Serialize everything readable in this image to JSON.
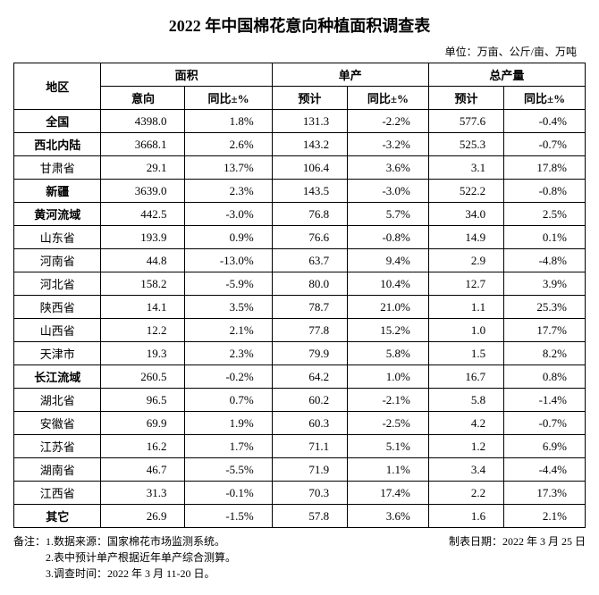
{
  "title": "2022 年中国棉花意向种植面积调查表",
  "unit_label": "单位：万亩、公斤/亩、万吨",
  "headers": {
    "region": "地区",
    "area": "面积",
    "area_intent": "意向",
    "area_yoy": "同比±%",
    "yield": "单产",
    "yield_est": "预计",
    "yield_yoy": "同比±%",
    "total": "总产量",
    "total_est": "预计",
    "total_yoy": "同比±%"
  },
  "rows": [
    {
      "region": "全国",
      "area": "4398.0",
      "area_yoy": "1.8%",
      "yield": "131.3",
      "yield_yoy": "-2.2%",
      "total": "577.6",
      "total_yoy": "-0.4%",
      "bold": true
    },
    {
      "region": "西北内陆",
      "area": "3668.1",
      "area_yoy": "2.6%",
      "yield": "143.2",
      "yield_yoy": "-3.2%",
      "total": "525.3",
      "total_yoy": "-0.7%",
      "bold": true
    },
    {
      "region": "甘肃省",
      "area": "29.1",
      "area_yoy": "13.7%",
      "yield": "106.4",
      "yield_yoy": "3.6%",
      "total": "3.1",
      "total_yoy": "17.8%",
      "bold": false
    },
    {
      "region": "新疆",
      "area": "3639.0",
      "area_yoy": "2.3%",
      "yield": "143.5",
      "yield_yoy": "-3.0%",
      "total": "522.2",
      "total_yoy": "-0.8%",
      "bold": true
    },
    {
      "region": "黄河流域",
      "area": "442.5",
      "area_yoy": "-3.0%",
      "yield": "76.8",
      "yield_yoy": "5.7%",
      "total": "34.0",
      "total_yoy": "2.5%",
      "bold": true
    },
    {
      "region": "山东省",
      "area": "193.9",
      "area_yoy": "0.9%",
      "yield": "76.6",
      "yield_yoy": "-0.8%",
      "total": "14.9",
      "total_yoy": "0.1%",
      "bold": false
    },
    {
      "region": "河南省",
      "area": "44.8",
      "area_yoy": "-13.0%",
      "yield": "63.7",
      "yield_yoy": "9.4%",
      "total": "2.9",
      "total_yoy": "-4.8%",
      "bold": false
    },
    {
      "region": "河北省",
      "area": "158.2",
      "area_yoy": "-5.9%",
      "yield": "80.0",
      "yield_yoy": "10.4%",
      "total": "12.7",
      "total_yoy": "3.9%",
      "bold": false
    },
    {
      "region": "陕西省",
      "area": "14.1",
      "area_yoy": "3.5%",
      "yield": "78.7",
      "yield_yoy": "21.0%",
      "total": "1.1",
      "total_yoy": "25.3%",
      "bold": false
    },
    {
      "region": "山西省",
      "area": "12.2",
      "area_yoy": "2.1%",
      "yield": "77.8",
      "yield_yoy": "15.2%",
      "total": "1.0",
      "total_yoy": "17.7%",
      "bold": false
    },
    {
      "region": "天津市",
      "area": "19.3",
      "area_yoy": "2.3%",
      "yield": "79.9",
      "yield_yoy": "5.8%",
      "total": "1.5",
      "total_yoy": "8.2%",
      "bold": false
    },
    {
      "region": "长江流域",
      "area": "260.5",
      "area_yoy": "-0.2%",
      "yield": "64.2",
      "yield_yoy": "1.0%",
      "total": "16.7",
      "total_yoy": "0.8%",
      "bold": true
    },
    {
      "region": "湖北省",
      "area": "96.5",
      "area_yoy": "0.7%",
      "yield": "60.2",
      "yield_yoy": "-2.1%",
      "total": "5.8",
      "total_yoy": "-1.4%",
      "bold": false
    },
    {
      "region": "安徽省",
      "area": "69.9",
      "area_yoy": "1.9%",
      "yield": "60.3",
      "yield_yoy": "-2.5%",
      "total": "4.2",
      "total_yoy": "-0.7%",
      "bold": false
    },
    {
      "region": "江苏省",
      "area": "16.2",
      "area_yoy": "1.7%",
      "yield": "71.1",
      "yield_yoy": "5.1%",
      "total": "1.2",
      "total_yoy": "6.9%",
      "bold": false
    },
    {
      "region": "湖南省",
      "area": "46.7",
      "area_yoy": "-5.5%",
      "yield": "71.9",
      "yield_yoy": "1.1%",
      "total": "3.4",
      "total_yoy": "-4.4%",
      "bold": false
    },
    {
      "region": "江西省",
      "area": "31.3",
      "area_yoy": "-0.1%",
      "yield": "70.3",
      "yield_yoy": "17.4%",
      "total": "2.2",
      "total_yoy": "17.3%",
      "bold": false
    },
    {
      "region": "其它",
      "area": "26.9",
      "area_yoy": "-1.5%",
      "yield": "57.8",
      "yield_yoy": "3.6%",
      "total": "1.6",
      "total_yoy": "2.1%",
      "bold": true
    }
  ],
  "notes": {
    "n1": "备注：1.数据来源：国家棉花市场监测系统。",
    "n2": "2.表中预计单产根据近年单产综合测算。",
    "n3": "3.调查时间：2022 年 3 月 11-20 日。"
  },
  "date_label": "制表日期：2022 年 3 月 25 日"
}
